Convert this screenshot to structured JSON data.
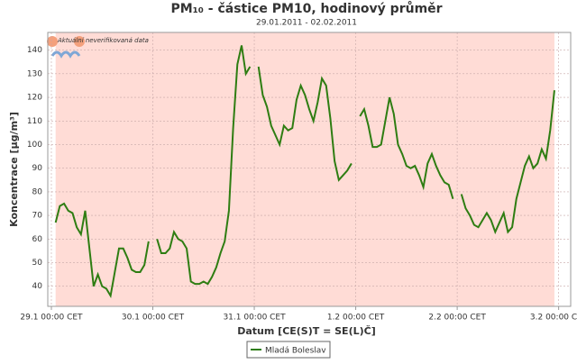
{
  "chart_data": {
    "type": "line",
    "title": "PM₁₀ - částice PM10, hodinový průměr",
    "subtitle": "29.01.2011 - 02.02.2011",
    "x_label": "Datum [CE(S)T = SE(L)Č]",
    "y_label": "Koncentrace [µg/m³]",
    "annotation": "Aktuální neverifikovaná data",
    "x": [
      0,
      1,
      2,
      3,
      4,
      5,
      6,
      7,
      8,
      9,
      10,
      11,
      12,
      13,
      14,
      15,
      16,
      17,
      18,
      19,
      20,
      21,
      22,
      23,
      24,
      25,
      26,
      27,
      28,
      29,
      30,
      31,
      32,
      33,
      34,
      35,
      36,
      37,
      38,
      39,
      40,
      41,
      42,
      43,
      44,
      45,
      46,
      47,
      48,
      49,
      50,
      51,
      52,
      53,
      54,
      55,
      56,
      57,
      58,
      59,
      60,
      61,
      62,
      63,
      64,
      65,
      66,
      67,
      68,
      69,
      70,
      71,
      72,
      73,
      74,
      75,
      76,
      77,
      78,
      79,
      80,
      81,
      82,
      83,
      84,
      85,
      86,
      87,
      88,
      89,
      90,
      91,
      92,
      93,
      94,
      95,
      96,
      97,
      98,
      99,
      100,
      101,
      102,
      103,
      104,
      105,
      106,
      107,
      108,
      109,
      110,
      111,
      112,
      113,
      114,
      115,
      116,
      117,
      118,
      119
    ],
    "series": [
      {
        "name": "Mladá Boleslav",
        "color": "#2e7d12",
        "values": [
          null,
          67,
          74,
          75,
          72,
          71,
          65,
          62,
          72,
          56,
          40,
          45,
          40,
          39,
          36,
          46,
          56,
          56,
          52,
          47,
          46,
          46,
          49,
          59,
          null,
          60,
          54,
          54,
          56,
          63,
          60,
          59,
          56,
          42,
          41,
          41,
          42,
          41,
          44,
          48,
          54,
          59,
          72,
          107,
          134,
          142,
          130,
          133,
          null,
          133,
          121,
          116,
          108,
          104,
          100,
          108,
          106,
          107,
          119,
          125,
          121,
          115,
          110,
          118,
          128,
          125,
          111,
          93,
          85,
          87,
          89,
          92,
          null,
          112,
          115,
          108,
          99,
          99,
          100,
          110,
          120,
          113,
          100,
          96,
          91,
          90,
          91,
          87,
          82,
          92,
          96,
          91,
          87,
          84,
          83,
          77,
          null,
          79,
          73,
          70,
          66,
          65,
          68,
          71,
          68,
          63,
          67,
          71,
          63,
          65,
          77,
          84,
          91,
          95,
          90,
          92,
          98,
          94,
          106,
          123
        ]
      }
    ],
    "xlim": [
      -0.85,
      122.85
    ],
    "ylim": [
      31.5,
      147.5
    ],
    "xticks": [
      {
        "value": 0,
        "label": "29.1 00:00 CET"
      },
      {
        "value": 24,
        "label": "30.1 00:00 CET"
      },
      {
        "value": 48,
        "label": "31.1 00:00 CET"
      },
      {
        "value": 72,
        "label": "1.2 00:00 CET"
      },
      {
        "value": 96,
        "label": "2.2 00:00 CET"
      },
      {
        "value": 120,
        "label": "3.2 00:00 CET"
      }
    ],
    "yticks": [
      40,
      50,
      60,
      70,
      80,
      90,
      100,
      110,
      120,
      130,
      140
    ],
    "grid": true,
    "legend": "bottom"
  }
}
